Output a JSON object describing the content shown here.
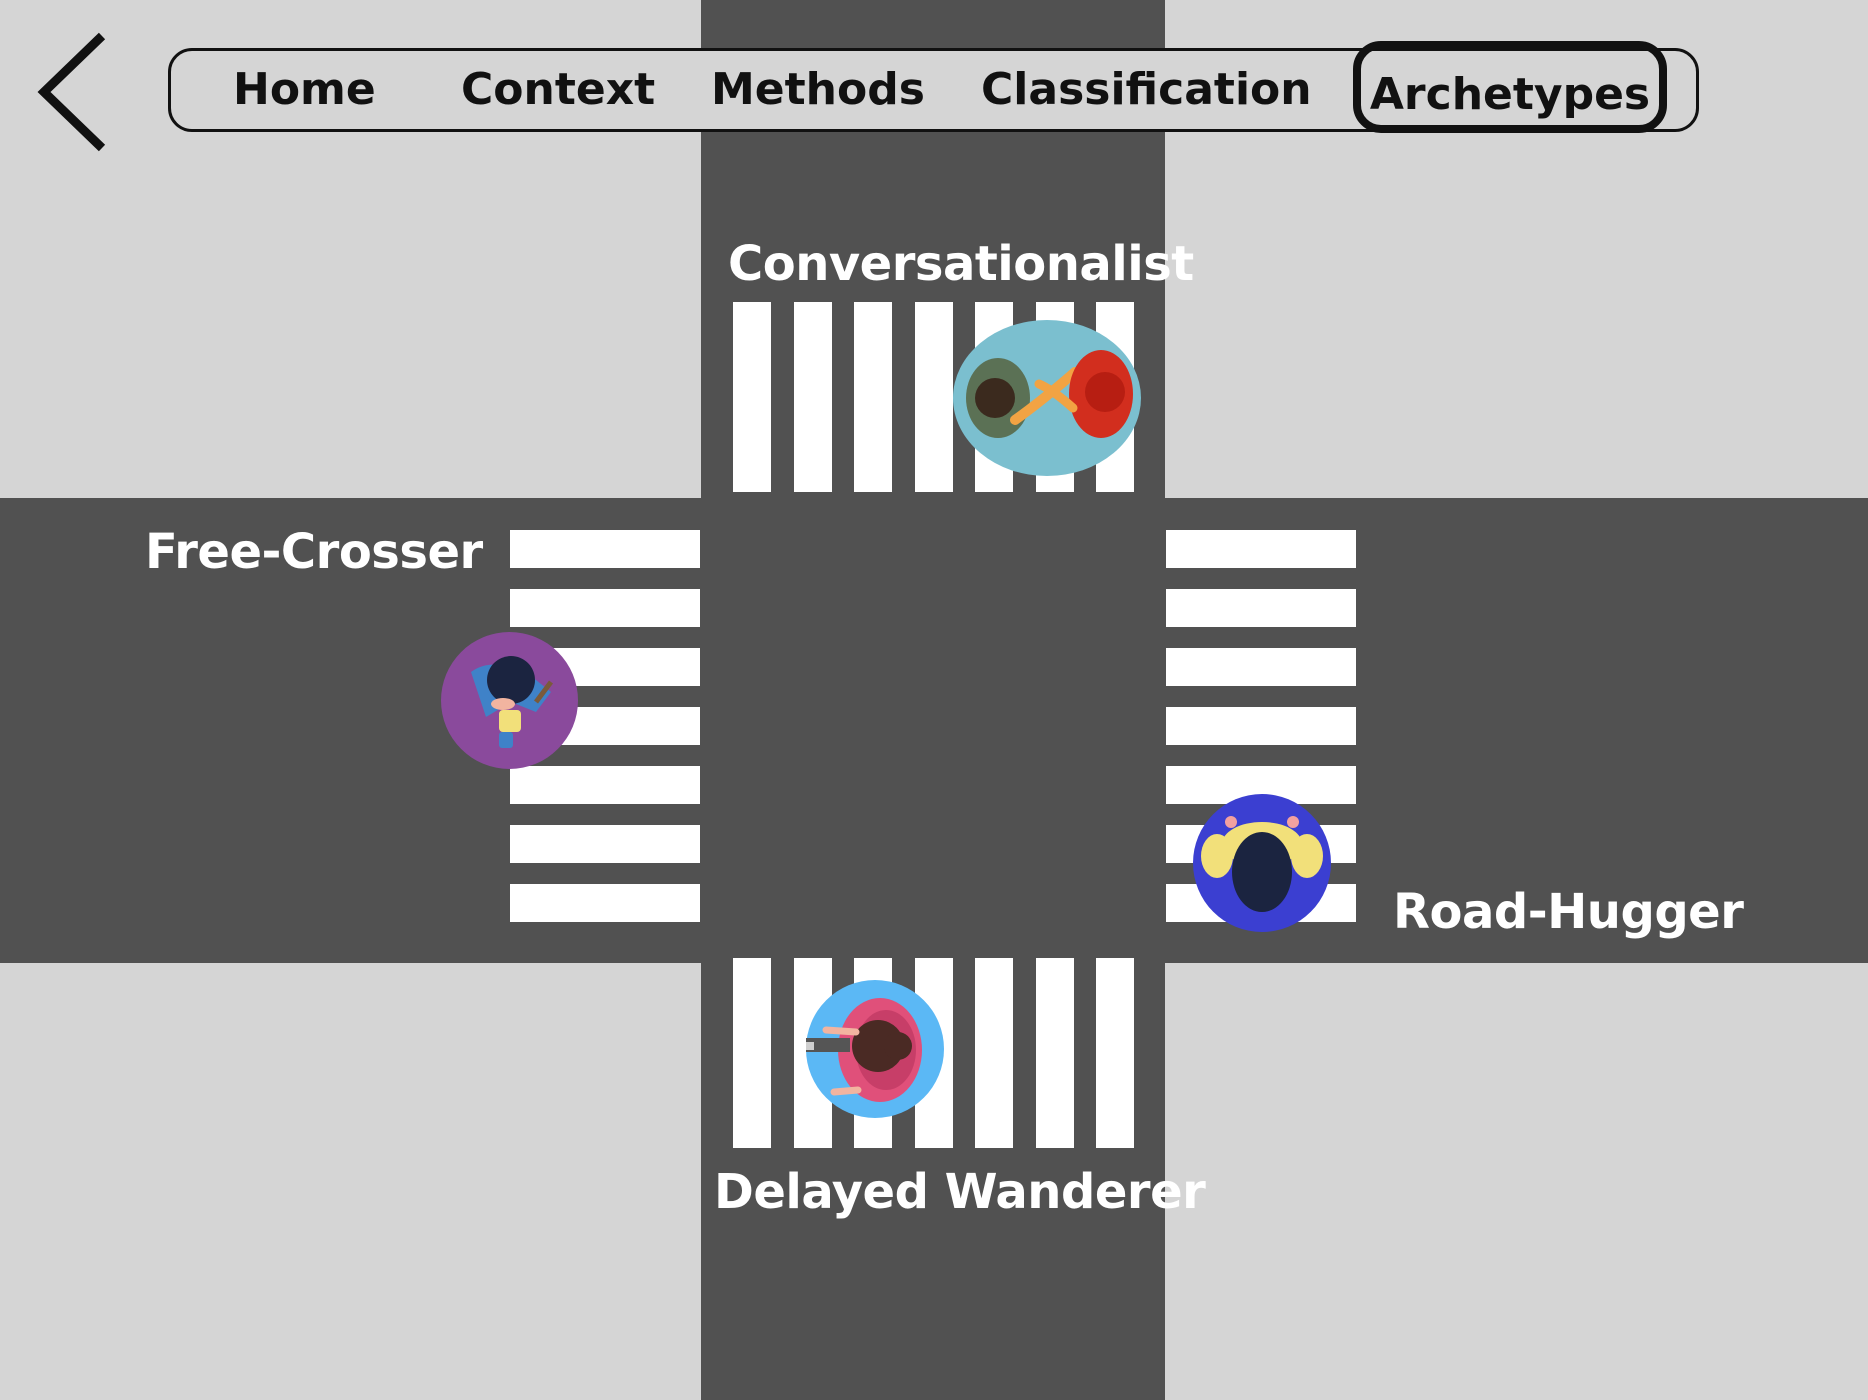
{
  "nav": {
    "back_icon": "chevron-left-icon",
    "items": [
      {
        "label": "Home"
      },
      {
        "label": "Context"
      },
      {
        "label": "Methods"
      },
      {
        "label": "Classification"
      },
      {
        "label": "Archetypes"
      }
    ],
    "active": "Archetypes"
  },
  "archetypes": {
    "top": {
      "label": "Conversationalist",
      "icon": "two-people-talking-icon",
      "color": "#7bbfcf"
    },
    "left": {
      "label": "Free-Crosser",
      "icon": "pedestrian-walking-icon",
      "color": "#8a4a9c"
    },
    "right": {
      "label": "Road-Hugger",
      "icon": "pedestrian-walking-icon",
      "color": "#3b3fd1"
    },
    "bottom": {
      "label": "Delayed Wanderer",
      "icon": "pedestrian-with-phone-icon",
      "color": "#5bb8f5"
    }
  },
  "colors": {
    "road": "#515151",
    "sidewalk": "#d5d5d5",
    "crosswalk": "#ffffff"
  }
}
